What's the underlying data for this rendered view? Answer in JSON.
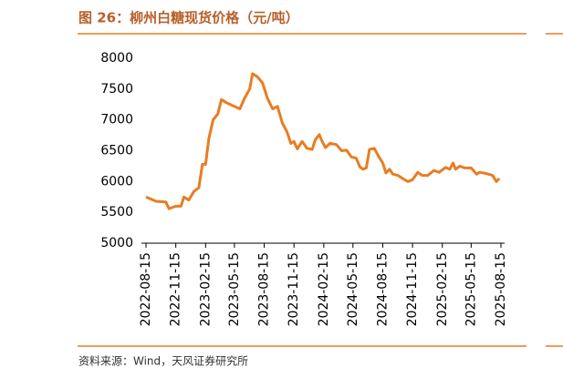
{
  "chart_data": {
    "type": "line",
    "title": "图 26：柳州白糖现货价格（元/吨）",
    "source": "资料来源：Wind，天风证券研究所",
    "color": "#e87d22",
    "xlim": [
      "2022-08-15",
      "2025-08-15"
    ],
    "xticks": [
      "2022-08-15",
      "2022-11-15",
      "2023-02-15",
      "2023-05-15",
      "2023-08-15",
      "2023-11-15",
      "2024-02-15",
      "2024-05-15",
      "2024-08-15",
      "2024-11-15",
      "2025-02-15",
      "2025-05-15",
      "2025-08-15"
    ],
    "ylim": [
      5000,
      8000
    ],
    "yticks": [
      5000,
      5500,
      6000,
      6500,
      7000,
      7500,
      8000
    ],
    "x": [
      "2022-08-15",
      "2022-09-15",
      "2022-10-15",
      "2022-10-25",
      "2022-11-15",
      "2022-12-01",
      "2022-12-10",
      "2022-12-25",
      "2023-01-10",
      "2023-01-25",
      "2023-02-05",
      "2023-02-15",
      "2023-02-25",
      "2023-03-10",
      "2023-03-25",
      "2023-04-05",
      "2023-04-20",
      "2023-05-15",
      "2023-06-01",
      "2023-06-15",
      "2023-07-01",
      "2023-07-10",
      "2023-07-25",
      "2023-08-10",
      "2023-08-25",
      "2023-09-10",
      "2023-09-25",
      "2023-10-10",
      "2023-10-25",
      "2023-11-05",
      "2023-11-15",
      "2023-11-25",
      "2023-12-10",
      "2023-12-25",
      "2024-01-10",
      "2024-01-20",
      "2024-02-01",
      "2024-02-10",
      "2024-02-20",
      "2024-03-05",
      "2024-03-25",
      "2024-04-10",
      "2024-04-25",
      "2024-05-10",
      "2024-05-25",
      "2024-06-05",
      "2024-06-15",
      "2024-06-25",
      "2024-07-05",
      "2024-07-20",
      "2024-08-01",
      "2024-08-15",
      "2024-08-25",
      "2024-09-05",
      "2024-09-15",
      "2024-10-01",
      "2024-10-15",
      "2024-11-01",
      "2024-11-15",
      "2024-12-01",
      "2024-12-15",
      "2025-01-01",
      "2025-01-20",
      "2025-02-05",
      "2025-02-25",
      "2025-03-10",
      "2025-03-20",
      "2025-03-28",
      "2025-04-10",
      "2025-04-25",
      "2025-05-15",
      "2025-06-01",
      "2025-06-10",
      "2025-07-01",
      "2025-07-20",
      "2025-08-01",
      "2025-08-10"
    ],
    "values": [
      5750,
      5680,
      5670,
      5560,
      5600,
      5600,
      5750,
      5700,
      5840,
      5900,
      6280,
      6280,
      6700,
      7000,
      7100,
      7330,
      7280,
      7220,
      7180,
      7350,
      7500,
      7750,
      7700,
      7600,
      7350,
      7180,
      7220,
      6950,
      6800,
      6620,
      6650,
      6530,
      6650,
      6540,
      6520,
      6680,
      6760,
      6650,
      6550,
      6620,
      6600,
      6500,
      6510,
      6400,
      6380,
      6240,
      6200,
      6220,
      6520,
      6540,
      6420,
      6300,
      6140,
      6200,
      6120,
      6100,
      6050,
      6000,
      6030,
      6150,
      6100,
      6100,
      6180,
      6150,
      6230,
      6200,
      6300,
      6200,
      6250,
      6220,
      6220,
      6120,
      6150,
      6130,
      6100,
      6000,
      6050
    ]
  }
}
